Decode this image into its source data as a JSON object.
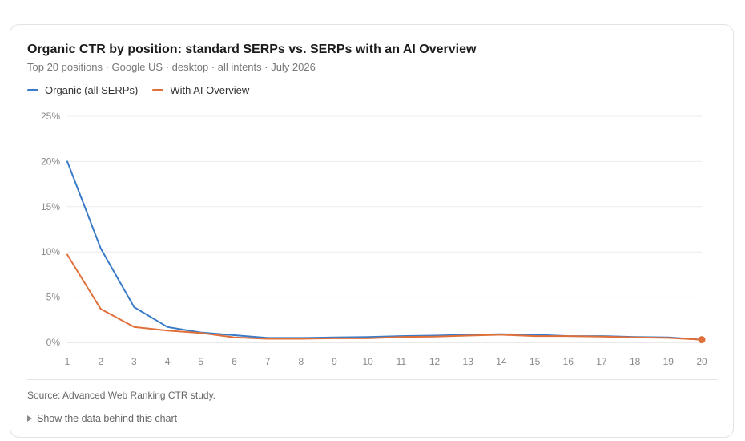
{
  "chart_data": {
    "type": "line",
    "title": "Organic CTR by position: standard SERPs vs. SERPs with an AI Overview",
    "subtitle": "Top 20 positions · Google US · desktop · all intents · July 2026",
    "x": [
      1,
      2,
      3,
      4,
      5,
      6,
      7,
      8,
      9,
      10,
      11,
      12,
      13,
      14,
      15,
      16,
      17,
      18,
      19,
      20
    ],
    "series": [
      {
        "name": "Organic (all SERPs)",
        "color": "#3a7bc8",
        "values": [
          20.0,
          10.4,
          3.9,
          1.7,
          1.1,
          0.8,
          0.5,
          0.5,
          0.55,
          0.6,
          0.7,
          0.75,
          0.85,
          0.9,
          0.85,
          0.7,
          0.7,
          0.6,
          0.55,
          0.3
        ]
      },
      {
        "name": "With AI Overview",
        "color": "#e0703a",
        "values": [
          9.7,
          3.7,
          1.7,
          1.3,
          1.05,
          0.55,
          0.4,
          0.4,
          0.45,
          0.45,
          0.6,
          0.65,
          0.75,
          0.85,
          0.7,
          0.7,
          0.65,
          0.55,
          0.5,
          0.3
        ]
      }
    ],
    "yticks": [
      "0%",
      "5%",
      "10%",
      "15%",
      "20%",
      "25%"
    ],
    "ylim": [
      0,
      25
    ],
    "xlim": [
      1,
      20
    ],
    "grid": true,
    "legend_position": "top-left",
    "source": "Source: Advanced Web Ranking CTR study.",
    "toggle_label": "Show the data behind this chart"
  }
}
